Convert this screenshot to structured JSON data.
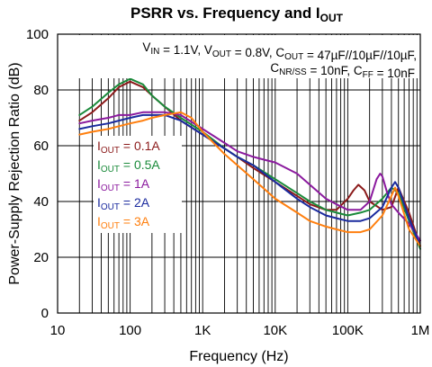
{
  "chart_data": {
    "type": "line",
    "title": {
      "prefix": "PSRR vs. Frequency and I",
      "sub": "OUT"
    },
    "xlabel": "Frequency (Hz)",
    "ylabel": "Power-Supply Rejection Ratio (dB)",
    "x_scale": "log",
    "xlim": [
      10,
      1000000
    ],
    "ylim": [
      0,
      100
    ],
    "grid": true,
    "x_ticks": [
      10,
      100,
      1000,
      10000,
      100000,
      1000000
    ],
    "x_tick_labels": [
      "10",
      "100",
      "1K",
      "10K",
      "100K",
      "1M"
    ],
    "y_ticks": [
      0,
      20,
      40,
      60,
      80,
      100
    ],
    "y_tick_labels": [
      "0",
      "20",
      "40",
      "60",
      "80",
      "100"
    ],
    "annotation": {
      "line1": [
        {
          "t": "V"
        },
        {
          "t": "IN",
          "sub": true
        },
        {
          "t": " = 1.1V, V"
        },
        {
          "t": "OUT",
          "sub": true
        },
        {
          "t": " = 0.8V, C"
        },
        {
          "t": "OUT",
          "sub": true
        },
        {
          "t": " = 47µF//10µF//10µF,"
        }
      ],
      "line2": [
        {
          "t": "C"
        },
        {
          "t": "NR/SS",
          "sub": true
        },
        {
          "t": " = 10nF, C"
        },
        {
          "t": "FF",
          "sub": true
        },
        {
          "t": " = 10nF"
        }
      ]
    },
    "legend_position": "center-left",
    "series": [
      {
        "name": "I",
        "name_sub": "OUT",
        "name_suffix": " = 0.1A",
        "color": "#8b1a1a",
        "x": [
          20,
          30,
          50,
          70,
          100,
          150,
          200,
          300,
          500,
          1000,
          2000,
          3000,
          5000,
          10000,
          20000,
          30000,
          50000,
          70000,
          100000,
          120000,
          140000,
          170000,
          200000,
          300000,
          400000,
          500000,
          700000,
          1000000
        ],
        "y": [
          69,
          72,
          77,
          81,
          83,
          81,
          78,
          74,
          69,
          64,
          59,
          56,
          52,
          47,
          42,
          39,
          37,
          37,
          41,
          44,
          46,
          44,
          40,
          37,
          38,
          45,
          36,
          24
        ]
      },
      {
        "name": "I",
        "name_sub": "OUT",
        "name_suffix": " = 0.5A",
        "color": "#1a8a3a",
        "x": [
          20,
          30,
          50,
          70,
          100,
          150,
          200,
          300,
          500,
          1000,
          2000,
          3000,
          5000,
          10000,
          20000,
          30000,
          50000,
          70000,
          100000,
          150000,
          200000,
          300000,
          400000,
          500000,
          700000,
          1000000
        ],
        "y": [
          71,
          74,
          79,
          82,
          84,
          82,
          78,
          74,
          70,
          65,
          59,
          56,
          53,
          48,
          43,
          40,
          37,
          36,
          35,
          36,
          37,
          41,
          45,
          43,
          33,
          23
        ]
      },
      {
        "name": "I",
        "name_sub": "OUT",
        "name_suffix": " = 1A",
        "color": "#8b1a9e",
        "x": [
          20,
          30,
          50,
          70,
          100,
          150,
          200,
          300,
          500,
          1000,
          2000,
          3000,
          5000,
          7000,
          10000,
          20000,
          30000,
          50000,
          70000,
          100000,
          150000,
          200000,
          250000,
          280000,
          300000,
          350000,
          400000,
          500000,
          700000,
          1000000
        ],
        "y": [
          68,
          69,
          70,
          71,
          71,
          72,
          72,
          72,
          71,
          66,
          61,
          58,
          56,
          55,
          54,
          50,
          46,
          41,
          39,
          37,
          37,
          40,
          48,
          50,
          49,
          43,
          39,
          36,
          32,
          26
        ]
      },
      {
        "name": "I",
        "name_sub": "OUT",
        "name_suffix": " = 2A",
        "color": "#1a2a9e",
        "x": [
          20,
          30,
          50,
          70,
          100,
          150,
          200,
          300,
          500,
          1000,
          2000,
          3000,
          5000,
          10000,
          20000,
          30000,
          50000,
          70000,
          100000,
          150000,
          200000,
          300000,
          400000,
          450000,
          500000,
          700000,
          1000000
        ],
        "y": [
          66,
          67,
          68,
          69,
          70,
          71,
          71,
          71,
          69,
          64,
          59,
          56,
          53,
          47,
          41,
          38,
          35,
          34,
          33,
          33,
          34,
          38,
          45,
          47,
          45,
          34,
          24
        ]
      },
      {
        "name": "I",
        "name_sub": "OUT",
        "name_suffix": " = 3A",
        "color": "#ff7f0e",
        "x": [
          20,
          30,
          50,
          70,
          100,
          150,
          200,
          300,
          500,
          700,
          1000,
          2000,
          3000,
          5000,
          10000,
          20000,
          30000,
          50000,
          70000,
          100000,
          150000,
          200000,
          300000,
          400000,
          450000,
          500000,
          700000,
          1000000
        ],
        "y": [
          64,
          65,
          66,
          67,
          68,
          69,
          70,
          71,
          72,
          70,
          65,
          57,
          53,
          48,
          41,
          36,
          33,
          31,
          30,
          29,
          29,
          30,
          35,
          42,
          45,
          42,
          30,
          24
        ]
      }
    ]
  }
}
